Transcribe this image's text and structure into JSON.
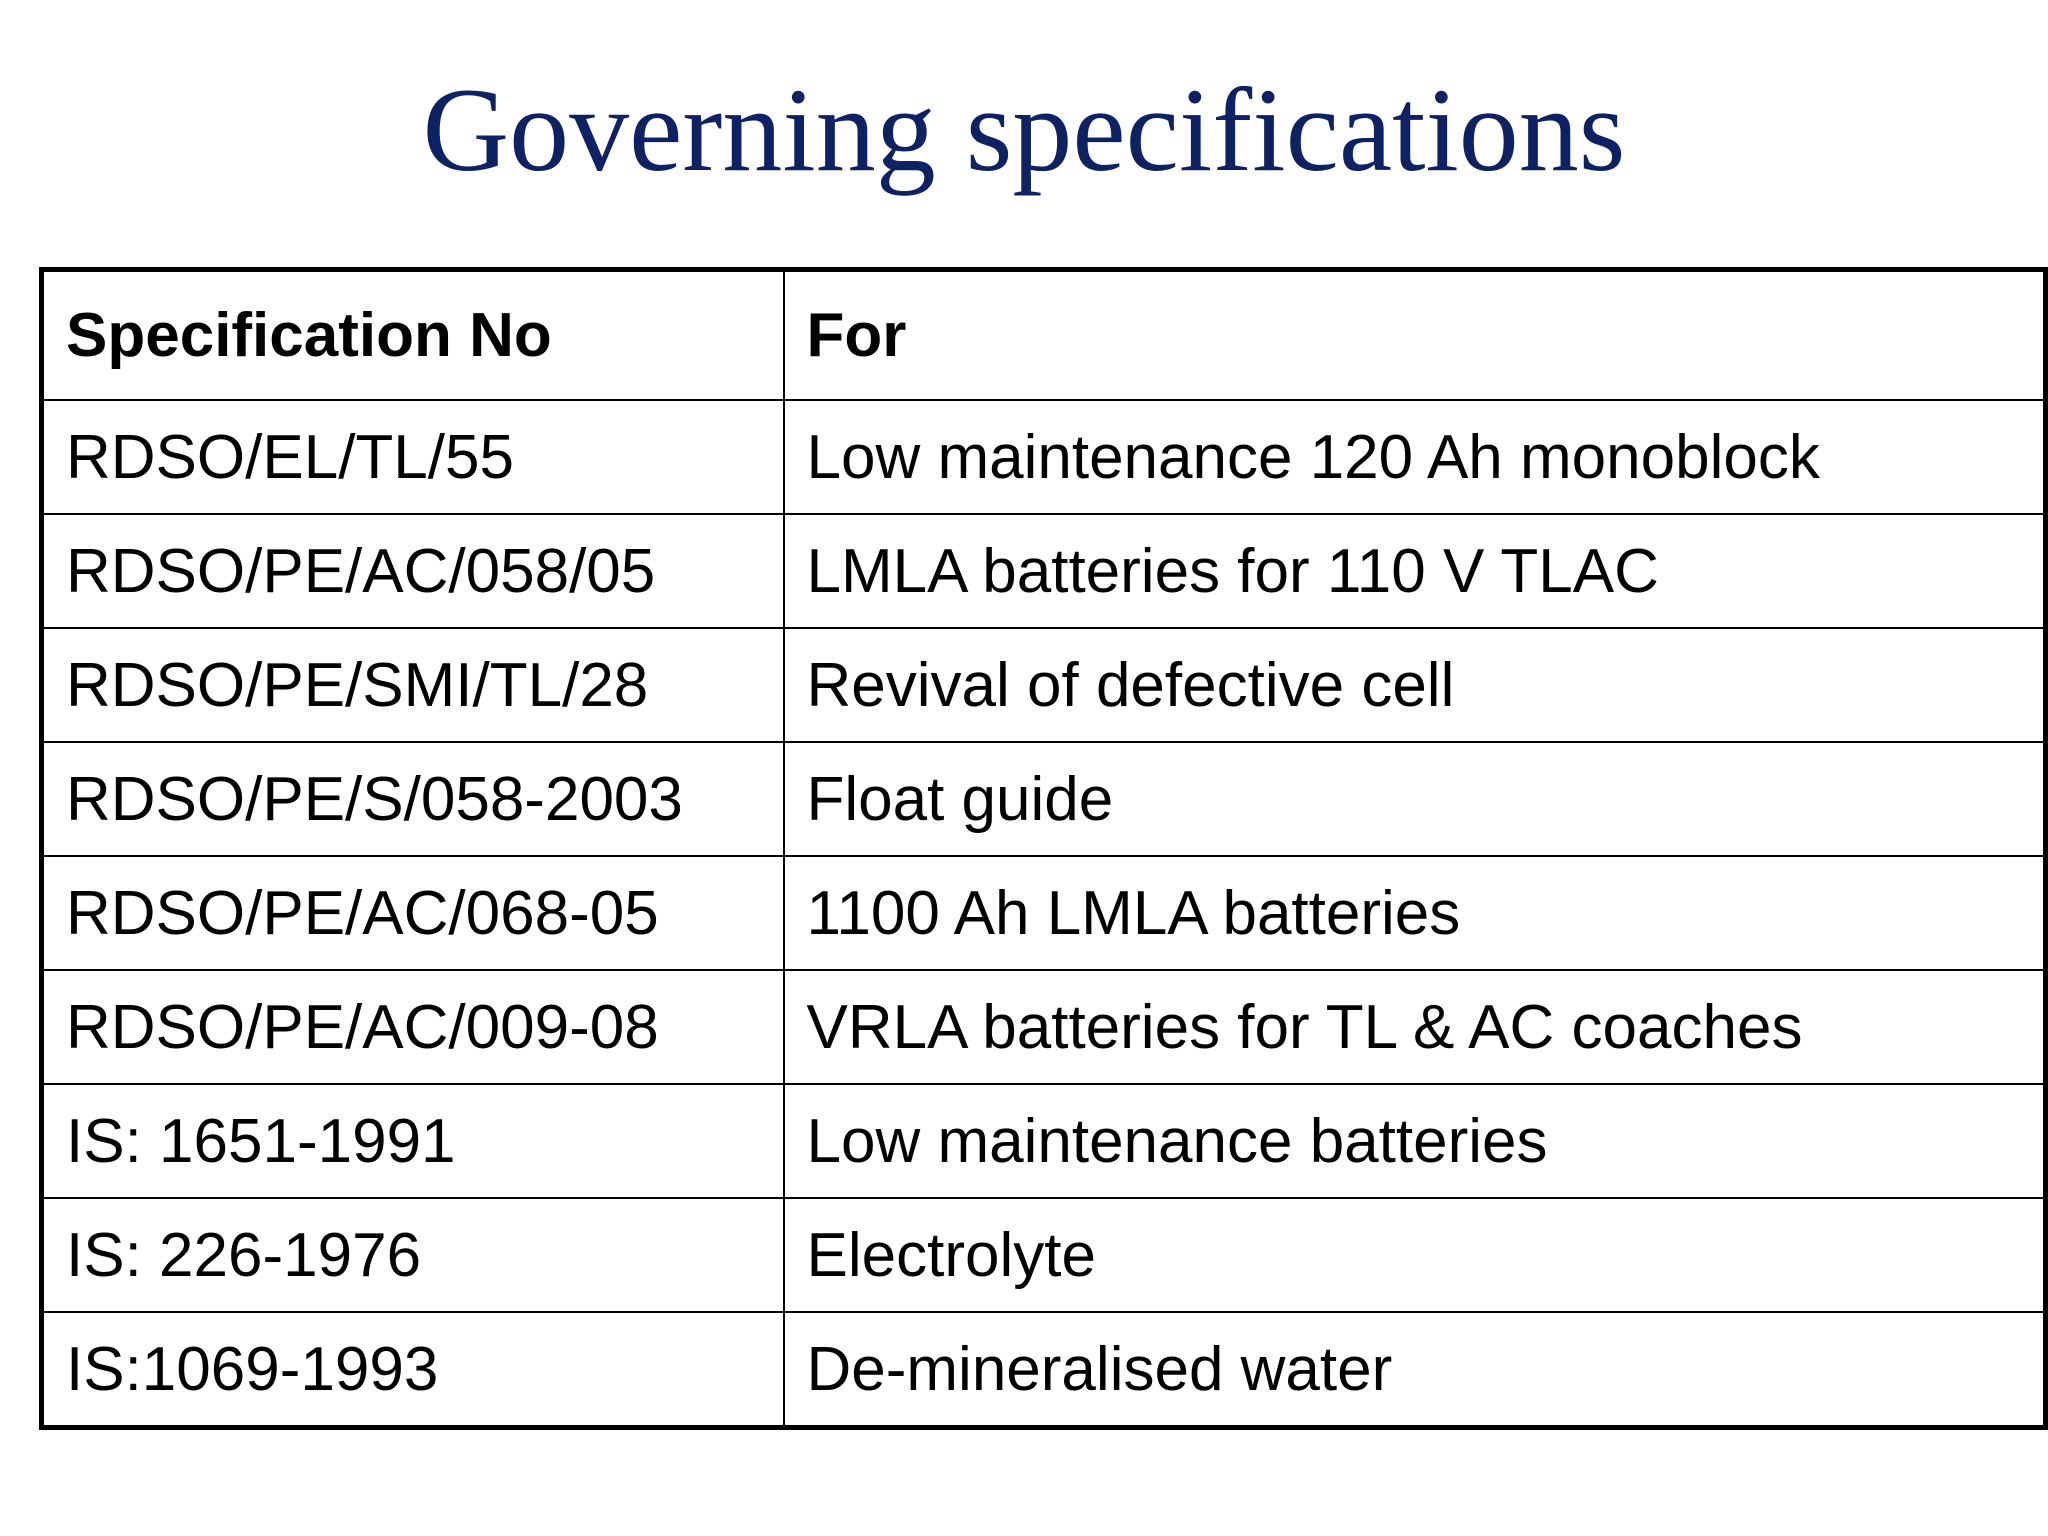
{
  "title": "Governing specifications",
  "table": {
    "header": [
      "Specification No",
      "For"
    ],
    "rows": [
      [
        "RDSO/EL/TL/55",
        "Low maintenance 120 Ah monoblock"
      ],
      [
        "RDSO/PE/AC/058/05",
        "LMLA batteries for 110 V TLAC"
      ],
      [
        "RDSO/PE/SMI/TL/28",
        "Revival of defective cell"
      ],
      [
        "RDSO/PE/S/058-2003",
        "Float guide"
      ],
      [
        "RDSO/PE/AC/068-05",
        "1100 Ah LMLA batteries"
      ],
      [
        "RDSO/PE/AC/009-08",
        "VRLA batteries for TL & AC coaches"
      ],
      [
        "IS: 1651-1991",
        "Low maintenance batteries"
      ],
      [
        "IS: 226-1976",
        "Electrolyte"
      ],
      [
        "IS:1069-1993",
        "De-mineralised water"
      ]
    ]
  }
}
